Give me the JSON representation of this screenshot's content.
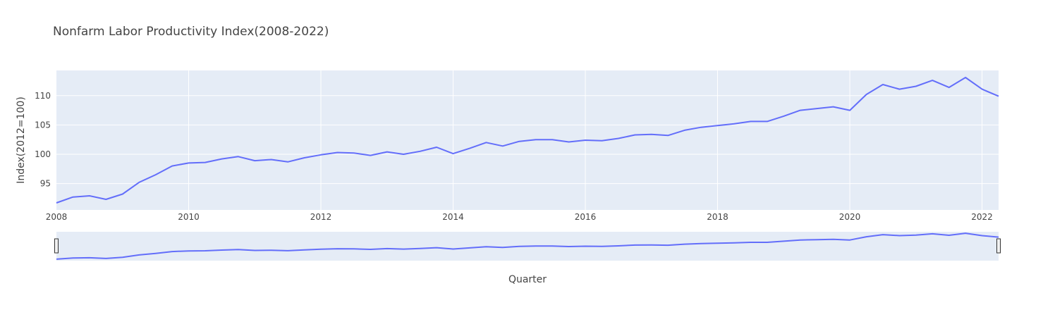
{
  "chart_data": {
    "type": "line",
    "title": "Nonfarm Labor Productivity Index(2008-2022)",
    "xlabel": "Quarter",
    "ylabel": "Index(2012=100)",
    "x_tick_labels": [
      "2008",
      "2010",
      "2012",
      "2014",
      "2016",
      "2018",
      "2020",
      "2022"
    ],
    "y_tick_labels": [
      "95",
      "100",
      "105",
      "110"
    ],
    "xlim": [
      2008.0,
      2022.25
    ],
    "ylim": [
      90.5,
      114.3
    ],
    "grid": true,
    "rangeslider": true,
    "colors": {
      "line": "#636efa",
      "plot_bg": "#e5ecf6",
      "grid": "#ffffff"
    },
    "series": [
      {
        "x": [
          "2008-Q1",
          "2008-Q2",
          "2008-Q3",
          "2008-Q4",
          "2009-Q1",
          "2009-Q2",
          "2009-Q3",
          "2009-Q4",
          "2010-Q1",
          "2010-Q2",
          "2010-Q3",
          "2010-Q4",
          "2011-Q1",
          "2011-Q2",
          "2011-Q3",
          "2011-Q4",
          "2012-Q1",
          "2012-Q2",
          "2012-Q3",
          "2012-Q4",
          "2013-Q1",
          "2013-Q2",
          "2013-Q3",
          "2013-Q4",
          "2014-Q1",
          "2014-Q2",
          "2014-Q3",
          "2014-Q4",
          "2015-Q1",
          "2015-Q2",
          "2015-Q3",
          "2015-Q4",
          "2016-Q1",
          "2016-Q2",
          "2016-Q3",
          "2016-Q4",
          "2017-Q1",
          "2017-Q2",
          "2017-Q3",
          "2017-Q4",
          "2018-Q1",
          "2018-Q2",
          "2018-Q3",
          "2018-Q4",
          "2019-Q1",
          "2019-Q2",
          "2019-Q3",
          "2019-Q4",
          "2020-Q1",
          "2020-Q2",
          "2020-Q3",
          "2020-Q4",
          "2021-Q1",
          "2021-Q2",
          "2021-Q3",
          "2021-Q4",
          "2022-Q1",
          "2022-Q2"
        ],
        "values": [
          91.7,
          92.7,
          92.9,
          92.3,
          93.2,
          95.2,
          96.5,
          98.0,
          98.5,
          98.6,
          99.2,
          99.6,
          98.9,
          99.1,
          98.7,
          99.4,
          99.9,
          100.3,
          100.2,
          99.8,
          100.4,
          100.0,
          100.5,
          101.2,
          100.1,
          101.0,
          102.0,
          101.4,
          102.2,
          102.5,
          102.5,
          102.1,
          102.4,
          102.3,
          102.7,
          103.3,
          103.4,
          103.2,
          104.1,
          104.6,
          104.9,
          105.2,
          105.6,
          105.6,
          106.5,
          107.5,
          107.8,
          108.1,
          107.5,
          110.2,
          111.9,
          111.1,
          111.6,
          112.6,
          111.4,
          113.1,
          111.1,
          109.9
        ]
      }
    ]
  }
}
